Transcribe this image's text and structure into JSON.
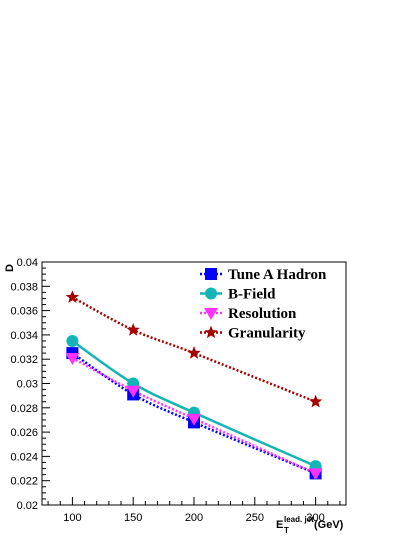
{
  "chart_data": {
    "type": "line",
    "ylabel": "D",
    "xlabel_main": "E",
    "xlabel_sub": "T",
    "xlabel_sup": "lead. jet",
    "xlabel_unit": "(GeV)",
    "xlim": [
      75,
      325
    ],
    "ylim": [
      0.02,
      0.04
    ],
    "x_ticks": [
      "100",
      "150",
      "200",
      "250",
      "300"
    ],
    "y_ticks": [
      "0.02",
      "0.022",
      "0.024",
      "0.026",
      "0.028",
      "0.03",
      "0.032",
      "0.034",
      "0.036",
      "0.038",
      "0.04"
    ],
    "grid": false,
    "legend_position": "top-right",
    "x": [
      100,
      150,
      200,
      300
    ],
    "series": [
      {
        "name": "Tune A Hadron",
        "values": [
          0.0325,
          0.0291,
          0.0268,
          0.0226
        ],
        "color": "#0000ff",
        "marker": "square",
        "line": "dotted"
      },
      {
        "name": "B-Field",
        "values": [
          0.0335,
          0.03,
          0.0276,
          0.0232
        ],
        "color": "#12b5b5",
        "marker": "circle",
        "line": "solid"
      },
      {
        "name": "Resolution",
        "values": [
          0.0321,
          0.0294,
          0.0271,
          0.0226
        ],
        "color": "#ff33ff",
        "marker": "triangle-down",
        "line": "dotted"
      },
      {
        "name": "Granularity",
        "values": [
          0.0371,
          0.0344,
          0.0325,
          0.0285
        ],
        "color": "#a60000",
        "marker": "star",
        "line": "dotted"
      }
    ]
  }
}
